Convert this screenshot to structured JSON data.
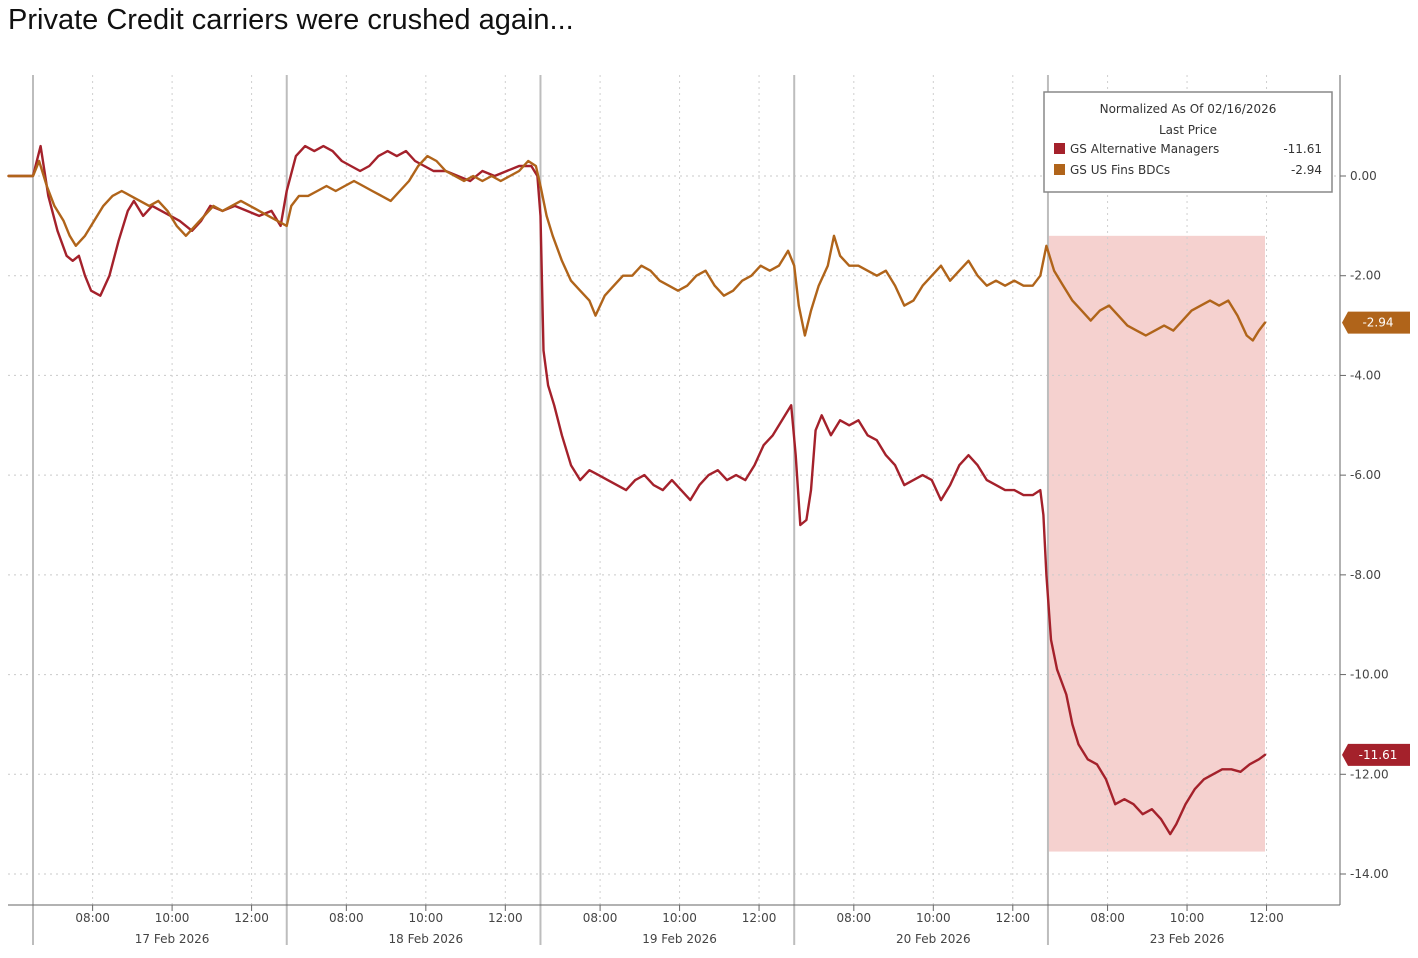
{
  "headline": "Private Credit carriers were crushed again...",
  "chart_data": {
    "type": "line",
    "title": "",
    "xlabel": "",
    "ylabel": "",
    "ylim": [
      -14.5,
      2
    ],
    "y_ticks": [
      0,
      -2,
      -4,
      -6,
      -8,
      -10,
      -12,
      -14
    ],
    "y_tick_labels": [
      "0.00",
      "-2.00",
      "-4.00",
      "-6.00",
      "-8.00",
      "-10.00",
      "-12.00",
      "-14.00"
    ],
    "y_axis_side": "right",
    "grid": true,
    "x_unit": "trading hours from session open (~07:00 each day)",
    "xlim": [
      0,
      41.5
    ],
    "days": [
      {
        "label": "17 Feb 2026",
        "start": 0
      },
      {
        "label": "18 Feb 2026",
        "start": 8.3
      },
      {
        "label": "19 Feb 2026",
        "start": 16.6
      },
      {
        "label": "20 Feb 2026",
        "start": 24.9
      },
      {
        "label": "23 Feb 2026",
        "start": 33.2
      }
    ],
    "time_ticks": [
      "08:00",
      "10:00",
      "12:00"
    ],
    "time_tick_offsets_hours": [
      1.95,
      4.55,
      7.15
    ],
    "highlight": {
      "x_start": 33.2,
      "x_end": 40.3,
      "y_top": -1.2,
      "y_bottom": -13.55,
      "color": "#f3c9c7"
    },
    "legend": {
      "position": "top-right",
      "title_lines": [
        "Normalized As Of 02/16/2026",
        "Last Price"
      ]
    },
    "series": [
      {
        "name": "GS Alternative Managers",
        "last_value": "-11.61",
        "color": "#a4212b",
        "points": [
          [
            -0.8,
            0.0
          ],
          [
            0.0,
            0.0
          ],
          [
            0.25,
            0.6
          ],
          [
            0.5,
            -0.4
          ],
          [
            0.8,
            -1.1
          ],
          [
            1.1,
            -1.6
          ],
          [
            1.3,
            -1.7
          ],
          [
            1.5,
            -1.6
          ],
          [
            1.7,
            -2.0
          ],
          [
            1.9,
            -2.3
          ],
          [
            2.2,
            -2.4
          ],
          [
            2.5,
            -2.0
          ],
          [
            2.8,
            -1.3
          ],
          [
            3.1,
            -0.7
          ],
          [
            3.3,
            -0.5
          ],
          [
            3.6,
            -0.8
          ],
          [
            3.9,
            -0.6
          ],
          [
            4.2,
            -0.7
          ],
          [
            4.5,
            -0.8
          ],
          [
            4.8,
            -0.9
          ],
          [
            5.2,
            -1.1
          ],
          [
            5.5,
            -0.9
          ],
          [
            5.8,
            -0.6
          ],
          [
            6.2,
            -0.7
          ],
          [
            6.6,
            -0.6
          ],
          [
            7.0,
            -0.7
          ],
          [
            7.4,
            -0.8
          ],
          [
            7.8,
            -0.7
          ],
          [
            8.1,
            -1.0
          ],
          [
            8.3,
            -0.3
          ],
          [
            8.6,
            0.4
          ],
          [
            8.9,
            0.6
          ],
          [
            9.2,
            0.5
          ],
          [
            9.5,
            0.6
          ],
          [
            9.8,
            0.5
          ],
          [
            10.1,
            0.3
          ],
          [
            10.4,
            0.2
          ],
          [
            10.7,
            0.1
          ],
          [
            11.0,
            0.2
          ],
          [
            11.3,
            0.4
          ],
          [
            11.6,
            0.5
          ],
          [
            11.9,
            0.4
          ],
          [
            12.2,
            0.5
          ],
          [
            12.5,
            0.3
          ],
          [
            12.8,
            0.2
          ],
          [
            13.1,
            0.1
          ],
          [
            13.5,
            0.1
          ],
          [
            13.9,
            0.0
          ],
          [
            14.3,
            -0.1
          ],
          [
            14.7,
            0.1
          ],
          [
            15.1,
            0.0
          ],
          [
            15.5,
            0.1
          ],
          [
            15.9,
            0.2
          ],
          [
            16.3,
            0.2
          ],
          [
            16.5,
            0.0
          ],
          [
            16.6,
            -0.8
          ],
          [
            16.7,
            -3.5
          ],
          [
            16.85,
            -4.2
          ],
          [
            17.05,
            -4.6
          ],
          [
            17.3,
            -5.2
          ],
          [
            17.6,
            -5.8
          ],
          [
            17.9,
            -6.1
          ],
          [
            18.2,
            -5.9
          ],
          [
            18.5,
            -6.0
          ],
          [
            18.8,
            -6.1
          ],
          [
            19.1,
            -6.2
          ],
          [
            19.4,
            -6.3
          ],
          [
            19.7,
            -6.1
          ],
          [
            20.0,
            -6.0
          ],
          [
            20.3,
            -6.2
          ],
          [
            20.6,
            -6.3
          ],
          [
            20.9,
            -6.1
          ],
          [
            21.2,
            -6.3
          ],
          [
            21.5,
            -6.5
          ],
          [
            21.8,
            -6.2
          ],
          [
            22.1,
            -6.0
          ],
          [
            22.4,
            -5.9
          ],
          [
            22.7,
            -6.1
          ],
          [
            23.0,
            -6.0
          ],
          [
            23.3,
            -6.1
          ],
          [
            23.6,
            -5.8
          ],
          [
            23.9,
            -5.4
          ],
          [
            24.2,
            -5.2
          ],
          [
            24.5,
            -4.9
          ],
          [
            24.8,
            -4.6
          ],
          [
            24.95,
            -5.6
          ],
          [
            25.1,
            -7.0
          ],
          [
            25.3,
            -6.9
          ],
          [
            25.45,
            -6.3
          ],
          [
            25.6,
            -5.1
          ],
          [
            25.8,
            -4.8
          ],
          [
            26.1,
            -5.2
          ],
          [
            26.4,
            -4.9
          ],
          [
            26.7,
            -5.0
          ],
          [
            27.0,
            -4.9
          ],
          [
            27.3,
            -5.2
          ],
          [
            27.6,
            -5.3
          ],
          [
            27.9,
            -5.6
          ],
          [
            28.2,
            -5.8
          ],
          [
            28.5,
            -6.2
          ],
          [
            28.8,
            -6.1
          ],
          [
            29.1,
            -6.0
          ],
          [
            29.4,
            -6.1
          ],
          [
            29.7,
            -6.5
          ],
          [
            30.0,
            -6.2
          ],
          [
            30.3,
            -5.8
          ],
          [
            30.6,
            -5.6
          ],
          [
            30.9,
            -5.8
          ],
          [
            31.2,
            -6.1
          ],
          [
            31.5,
            -6.2
          ],
          [
            31.8,
            -6.3
          ],
          [
            32.1,
            -6.3
          ],
          [
            32.4,
            -6.4
          ],
          [
            32.7,
            -6.4
          ],
          [
            32.95,
            -6.3
          ],
          [
            33.05,
            -6.8
          ],
          [
            33.15,
            -8.0
          ],
          [
            33.3,
            -9.3
          ],
          [
            33.5,
            -9.9
          ],
          [
            33.8,
            -10.4
          ],
          [
            34.0,
            -11.0
          ],
          [
            34.2,
            -11.4
          ],
          [
            34.5,
            -11.7
          ],
          [
            34.8,
            -11.8
          ],
          [
            35.1,
            -12.1
          ],
          [
            35.4,
            -12.6
          ],
          [
            35.7,
            -12.5
          ],
          [
            36.0,
            -12.6
          ],
          [
            36.3,
            -12.8
          ],
          [
            36.6,
            -12.7
          ],
          [
            36.9,
            -12.9
          ],
          [
            37.2,
            -13.2
          ],
          [
            37.4,
            -13.0
          ],
          [
            37.7,
            -12.6
          ],
          [
            38.0,
            -12.3
          ],
          [
            38.3,
            -12.1
          ],
          [
            38.6,
            -12.0
          ],
          [
            38.9,
            -11.9
          ],
          [
            39.2,
            -11.9
          ],
          [
            39.5,
            -11.95
          ],
          [
            39.8,
            -11.8
          ],
          [
            40.1,
            -11.7
          ],
          [
            40.3,
            -11.61
          ]
        ]
      },
      {
        "name": "GS US Fins BDCs",
        "last_value": "-2.94",
        "color": "#b0641a",
        "points": [
          [
            -0.8,
            0.0
          ],
          [
            0.0,
            0.0
          ],
          [
            0.2,
            0.3
          ],
          [
            0.45,
            -0.2
          ],
          [
            0.7,
            -0.6
          ],
          [
            1.0,
            -0.9
          ],
          [
            1.2,
            -1.2
          ],
          [
            1.4,
            -1.4
          ],
          [
            1.7,
            -1.2
          ],
          [
            2.0,
            -0.9
          ],
          [
            2.3,
            -0.6
          ],
          [
            2.6,
            -0.4
          ],
          [
            2.9,
            -0.3
          ],
          [
            3.2,
            -0.4
          ],
          [
            3.5,
            -0.5
          ],
          [
            3.8,
            -0.6
          ],
          [
            4.1,
            -0.5
          ],
          [
            4.4,
            -0.7
          ],
          [
            4.7,
            -1.0
          ],
          [
            5.0,
            -1.2
          ],
          [
            5.3,
            -1.0
          ],
          [
            5.6,
            -0.8
          ],
          [
            5.9,
            -0.6
          ],
          [
            6.2,
            -0.7
          ],
          [
            6.5,
            -0.6
          ],
          [
            6.8,
            -0.5
          ],
          [
            7.1,
            -0.6
          ],
          [
            7.4,
            -0.7
          ],
          [
            7.7,
            -0.8
          ],
          [
            8.0,
            -0.9
          ],
          [
            8.3,
            -1.0
          ],
          [
            8.45,
            -0.6
          ],
          [
            8.7,
            -0.4
          ],
          [
            9.0,
            -0.4
          ],
          [
            9.3,
            -0.3
          ],
          [
            9.6,
            -0.2
          ],
          [
            9.9,
            -0.3
          ],
          [
            10.2,
            -0.2
          ],
          [
            10.5,
            -0.1
          ],
          [
            10.8,
            -0.2
          ],
          [
            11.1,
            -0.3
          ],
          [
            11.4,
            -0.4
          ],
          [
            11.7,
            -0.5
          ],
          [
            12.0,
            -0.3
          ],
          [
            12.3,
            -0.1
          ],
          [
            12.6,
            0.2
          ],
          [
            12.9,
            0.4
          ],
          [
            13.2,
            0.3
          ],
          [
            13.5,
            0.1
          ],
          [
            13.8,
            0.0
          ],
          [
            14.1,
            -0.1
          ],
          [
            14.4,
            0.0
          ],
          [
            14.7,
            -0.1
          ],
          [
            15.0,
            0.0
          ],
          [
            15.3,
            -0.1
          ],
          [
            15.6,
            0.0
          ],
          [
            15.9,
            0.1
          ],
          [
            16.2,
            0.3
          ],
          [
            16.45,
            0.2
          ],
          [
            16.6,
            -0.2
          ],
          [
            16.8,
            -0.8
          ],
          [
            17.0,
            -1.2
          ],
          [
            17.3,
            -1.7
          ],
          [
            17.6,
            -2.1
          ],
          [
            17.9,
            -2.3
          ],
          [
            18.2,
            -2.5
          ],
          [
            18.4,
            -2.8
          ],
          [
            18.7,
            -2.4
          ],
          [
            19.0,
            -2.2
          ],
          [
            19.3,
            -2.0
          ],
          [
            19.6,
            -2.0
          ],
          [
            19.9,
            -1.8
          ],
          [
            20.2,
            -1.9
          ],
          [
            20.5,
            -2.1
          ],
          [
            20.8,
            -2.2
          ],
          [
            21.1,
            -2.3
          ],
          [
            21.4,
            -2.2
          ],
          [
            21.7,
            -2.0
          ],
          [
            22.0,
            -1.9
          ],
          [
            22.3,
            -2.2
          ],
          [
            22.6,
            -2.4
          ],
          [
            22.9,
            -2.3
          ],
          [
            23.2,
            -2.1
          ],
          [
            23.5,
            -2.0
          ],
          [
            23.8,
            -1.8
          ],
          [
            24.1,
            -1.9
          ],
          [
            24.4,
            -1.8
          ],
          [
            24.7,
            -1.5
          ],
          [
            24.9,
            -1.8
          ],
          [
            25.05,
            -2.6
          ],
          [
            25.25,
            -3.2
          ],
          [
            25.45,
            -2.7
          ],
          [
            25.7,
            -2.2
          ],
          [
            26.0,
            -1.8
          ],
          [
            26.2,
            -1.2
          ],
          [
            26.4,
            -1.6
          ],
          [
            26.7,
            -1.8
          ],
          [
            27.0,
            -1.8
          ],
          [
            27.3,
            -1.9
          ],
          [
            27.6,
            -2.0
          ],
          [
            27.9,
            -1.9
          ],
          [
            28.2,
            -2.2
          ],
          [
            28.5,
            -2.6
          ],
          [
            28.8,
            -2.5
          ],
          [
            29.1,
            -2.2
          ],
          [
            29.4,
            -2.0
          ],
          [
            29.7,
            -1.8
          ],
          [
            30.0,
            -2.1
          ],
          [
            30.3,
            -1.9
          ],
          [
            30.6,
            -1.7
          ],
          [
            30.9,
            -2.0
          ],
          [
            31.2,
            -2.2
          ],
          [
            31.5,
            -2.1
          ],
          [
            31.8,
            -2.2
          ],
          [
            32.1,
            -2.1
          ],
          [
            32.4,
            -2.2
          ],
          [
            32.7,
            -2.2
          ],
          [
            32.95,
            -2.0
          ],
          [
            33.15,
            -1.4
          ],
          [
            33.4,
            -1.9
          ],
          [
            33.7,
            -2.2
          ],
          [
            34.0,
            -2.5
          ],
          [
            34.3,
            -2.7
          ],
          [
            34.6,
            -2.9
          ],
          [
            34.9,
            -2.7
          ],
          [
            35.2,
            -2.6
          ],
          [
            35.5,
            -2.8
          ],
          [
            35.8,
            -3.0
          ],
          [
            36.1,
            -3.1
          ],
          [
            36.4,
            -3.2
          ],
          [
            36.7,
            -3.1
          ],
          [
            37.0,
            -3.0
          ],
          [
            37.3,
            -3.1
          ],
          [
            37.6,
            -2.9
          ],
          [
            37.9,
            -2.7
          ],
          [
            38.2,
            -2.6
          ],
          [
            38.5,
            -2.5
          ],
          [
            38.8,
            -2.6
          ],
          [
            39.1,
            -2.5
          ],
          [
            39.4,
            -2.8
          ],
          [
            39.7,
            -3.2
          ],
          [
            39.9,
            -3.3
          ],
          [
            40.1,
            -3.1
          ],
          [
            40.3,
            -2.94
          ]
        ]
      }
    ]
  }
}
